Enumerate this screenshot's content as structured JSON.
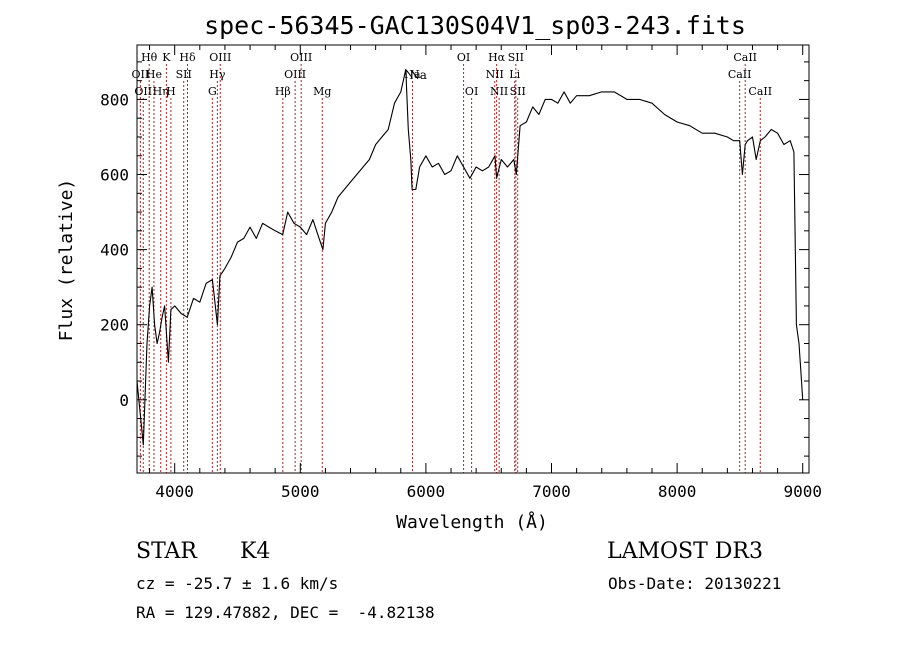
{
  "chart_data": {
    "type": "line",
    "title": "spec-56345-GAC130S04V1_sp03-243.fits",
    "xlabel": "Wavelength (Å)",
    "ylabel": "Flux (relative)",
    "xlim": [
      3700,
      9050
    ],
    "ylim": [
      -195,
      945
    ],
    "xticks": [
      4000,
      5000,
      6000,
      7000,
      8000,
      9000
    ],
    "yticks": [
      0,
      200,
      400,
      600,
      800
    ],
    "grid": false,
    "series": [
      {
        "name": "spectrum",
        "color": "#000000",
        "x": [
          3700,
          3750,
          3780,
          3800,
          3820,
          3840,
          3860,
          3880,
          3900,
          3920,
          3950,
          3970,
          4000,
          4050,
          4100,
          4150,
          4200,
          4250,
          4300,
          4340,
          4360,
          4400,
          4450,
          4500,
          4550,
          4600,
          4650,
          4700,
          4750,
          4800,
          4860,
          4900,
          4950,
          5000,
          5050,
          5100,
          5150,
          5180,
          5200,
          5250,
          5300,
          5350,
          5400,
          5450,
          5500,
          5550,
          5600,
          5650,
          5700,
          5750,
          5800,
          5840,
          5860,
          5880,
          5890,
          5900,
          5920,
          5950,
          6000,
          6050,
          6100,
          6150,
          6200,
          6250,
          6300,
          6350,
          6400,
          6450,
          6500,
          6550,
          6563,
          6600,
          6650,
          6700,
          6720,
          6750,
          6800,
          6850,
          6900,
          6950,
          7000,
          7050,
          7100,
          7150,
          7200,
          7300,
          7400,
          7500,
          7600,
          7700,
          7800,
          7900,
          8000,
          8100,
          8200,
          8300,
          8400,
          8450,
          8498,
          8520,
          8542,
          8560,
          8600,
          8630,
          8662,
          8700,
          8750,
          8800,
          8850,
          8900,
          8930,
          8950,
          8970,
          8990,
          9000
        ],
        "values": [
          50,
          -120,
          150,
          250,
          300,
          200,
          150,
          180,
          220,
          250,
          100,
          240,
          250,
          230,
          220,
          270,
          260,
          310,
          320,
          200,
          330,
          350,
          380,
          420,
          430,
          460,
          430,
          470,
          460,
          450,
          440,
          500,
          470,
          460,
          440,
          480,
          430,
          400,
          470,
          500,
          540,
          560,
          580,
          600,
          620,
          640,
          680,
          700,
          720,
          790,
          820,
          880,
          720,
          640,
          560,
          560,
          560,
          620,
          650,
          620,
          630,
          600,
          610,
          650,
          620,
          590,
          620,
          610,
          620,
          650,
          590,
          640,
          620,
          640,
          600,
          730,
          740,
          780,
          760,
          800,
          800,
          790,
          820,
          790,
          810,
          810,
          820,
          820,
          800,
          800,
          790,
          760,
          740,
          730,
          710,
          710,
          700,
          690,
          690,
          600,
          680,
          690,
          700,
          640,
          690,
          700,
          720,
          710,
          680,
          690,
          660,
          200,
          150,
          50,
          0
        ],
        "annotations": [
          {
            "x": 5890,
            "label": "Na"
          }
        ]
      }
    ],
    "lines_markers": [
      {
        "wavelength": 3727,
        "label": "OII",
        "row": 2
      },
      {
        "wavelength": 3750,
        "label": "OII",
        "row": 3
      },
      {
        "wavelength": 3797,
        "label": "Hθ",
        "row": 1
      },
      {
        "wavelength": 3835,
        "label": "He",
        "row": 2
      },
      {
        "wavelength": 3889,
        "label": "Hη",
        "row": 3
      },
      {
        "wavelength": 3934,
        "label": "K",
        "row": 1
      },
      {
        "wavelength": 3970,
        "label": "H",
        "row": 3
      },
      {
        "wavelength": 4072,
        "label": "SII",
        "row": 2
      },
      {
        "wavelength": 4102,
        "label": "Hδ",
        "row": 1
      },
      {
        "wavelength": 4300,
        "label": "G",
        "row": 3
      },
      {
        "wavelength": 4340,
        "label": "Hγ",
        "row": 2
      },
      {
        "wavelength": 4363,
        "label": "OIII",
        "row": 1
      },
      {
        "wavelength": 4861,
        "label": "Hβ",
        "row": 3
      },
      {
        "wavelength": 4959,
        "label": "OIII",
        "row": 2
      },
      {
        "wavelength": 5007,
        "label": "OIII",
        "row": 1
      },
      {
        "wavelength": 5175,
        "label": "Mg",
        "row": 3
      },
      {
        "wavelength": 5893,
        "label": "Na",
        "row": 2
      },
      {
        "wavelength": 6300,
        "label": "OI",
        "row": 1
      },
      {
        "wavelength": 6364,
        "label": "OI",
        "row": 3
      },
      {
        "wavelength": 6548,
        "label": "NII",
        "row": 2
      },
      {
        "wavelength": 6563,
        "label": "Hα",
        "row": 1
      },
      {
        "wavelength": 6583,
        "label": "NII",
        "row": 3
      },
      {
        "wavelength": 6707,
        "label": "Li",
        "row": 2
      },
      {
        "wavelength": 6716,
        "label": "SII",
        "row": 1
      },
      {
        "wavelength": 6731,
        "label": "SII",
        "row": 3
      },
      {
        "wavelength": 8498,
        "label": "CaII",
        "row": 2
      },
      {
        "wavelength": 8542,
        "label": "CaII",
        "row": 1
      },
      {
        "wavelength": 8662,
        "label": "CaII",
        "row": 3
      }
    ]
  },
  "info": {
    "class": "STAR",
    "subclass": "K4",
    "survey": "LAMOST DR3",
    "cz": "cz = -25.7 ± 1.6 km/s",
    "obs_date": "Obs-Date: 20130221",
    "radec": "RA = 129.47882, DEC =  -4.82138"
  },
  "colors": {
    "spectrum": "#000000",
    "line_markers": "#b22222",
    "axes": "#000000"
  }
}
